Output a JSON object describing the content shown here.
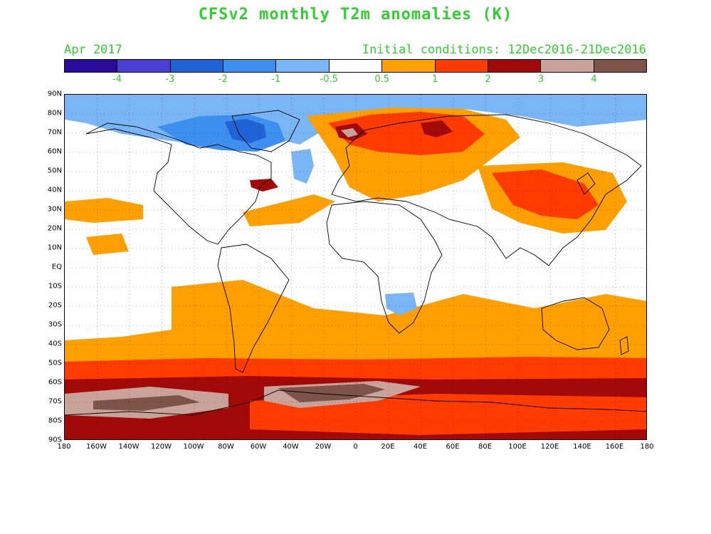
{
  "header": {
    "title": "CFSv2 monthly T2m anomalies (K)",
    "valid_month": "Apr 2017",
    "initial_conditions": "Initial conditions: 12Dec2016-21Dec2016"
  },
  "colorbar": {
    "colors": [
      "#2a0a9a",
      "#4a3fd4",
      "#1f63d6",
      "#3d8ff0",
      "#7ab6f5",
      "#ffffff",
      "#ff9f00",
      "#ff3b00",
      "#a20a0a",
      "#c9a39a",
      "#7e5448"
    ],
    "labels": [
      "-4",
      "-3",
      "-2",
      "-1",
      "-0.5",
      "0.5",
      "1",
      "2",
      "3",
      "4"
    ]
  },
  "map": {
    "lat_labels": [
      "90N",
      "80N",
      "70N",
      "60N",
      "50N",
      "40N",
      "30N",
      "20N",
      "10N",
      "EQ",
      "10S",
      "20S",
      "30S",
      "40S",
      "50S",
      "60S",
      "70S",
      "80S",
      "90S"
    ],
    "lon_labels": [
      "180",
      "160W",
      "140W",
      "120W",
      "100W",
      "80W",
      "60W",
      "40W",
      "20W",
      "0",
      "20E",
      "40E",
      "60E",
      "80E",
      "100E",
      "120E",
      "140E",
      "160E",
      "180"
    ],
    "legend_unit": "K"
  }
}
